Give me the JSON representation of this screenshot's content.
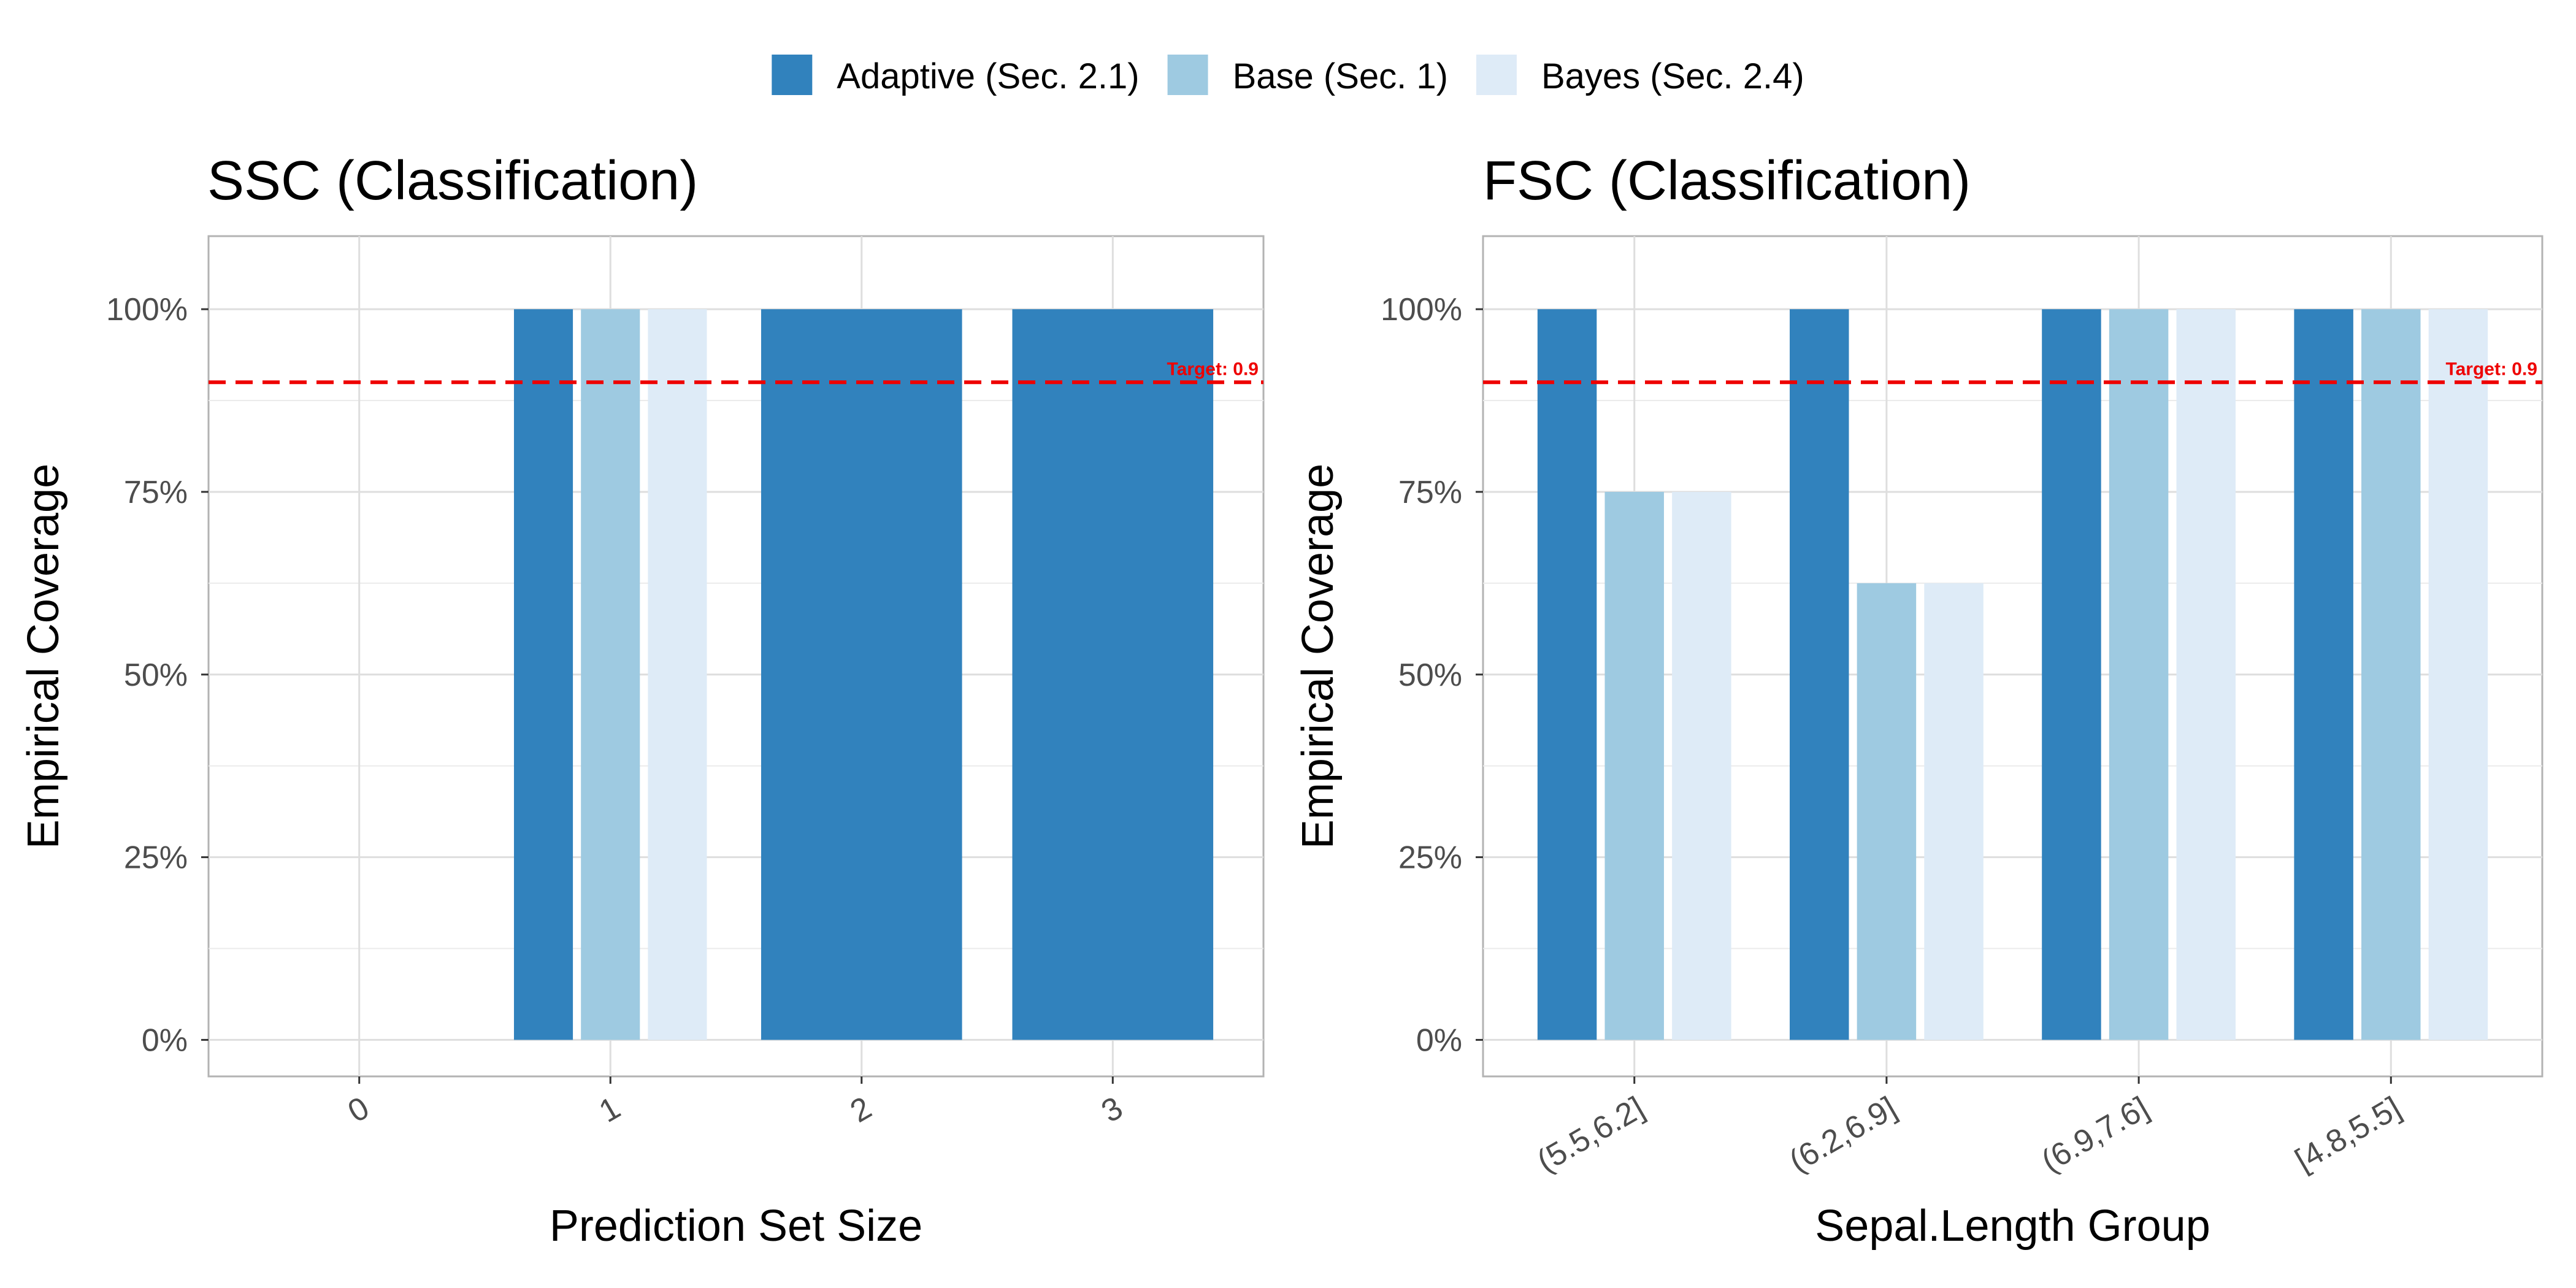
{
  "legend": [
    {
      "label": "Adaptive (Sec. 2.1)",
      "color": "#3182bd"
    },
    {
      "label": "Base (Sec. 1)",
      "color": "#9ecae1"
    },
    {
      "label": "Bayes (Sec. 2.4)",
      "color": "#deebf7"
    }
  ],
  "chart_data": [
    {
      "type": "bar",
      "title": "SSC (Classification)",
      "xlabel": "Prediction Set Size",
      "ylabel": "Empirical Coverage",
      "categories": [
        "0",
        "1",
        "2",
        "3"
      ],
      "ylim": [
        0,
        1.1
      ],
      "yticks": [
        "0%",
        "25%",
        "50%",
        "75%",
        "100%"
      ],
      "target": {
        "value": 0.9,
        "label": "Target: 0.9",
        "color": "#ee0000"
      },
      "series": [
        {
          "name": "Adaptive (Sec. 2.1)",
          "values": [
            null,
            1.0,
            1.0,
            1.0
          ]
        },
        {
          "name": "Base (Sec. 1)",
          "values": [
            null,
            1.0,
            null,
            null
          ]
        },
        {
          "name": "Bayes (Sec. 2.4)",
          "values": [
            null,
            1.0,
            null,
            null
          ]
        }
      ],
      "grid": true,
      "legend_position": "top"
    },
    {
      "type": "bar",
      "title": "FSC (Classification)",
      "xlabel": "Sepal.Length Group",
      "ylabel": "Empirical Coverage",
      "categories": [
        "(5.5,6.2]",
        "(6.2,6.9]",
        "(6.9,7.6]",
        "[4.8,5.5]"
      ],
      "ylim": [
        0,
        1.1
      ],
      "yticks": [
        "0%",
        "25%",
        "50%",
        "75%",
        "100%"
      ],
      "target": {
        "value": 0.9,
        "label": "Target: 0.9",
        "color": "#ee0000"
      },
      "series": [
        {
          "name": "Adaptive (Sec. 2.1)",
          "values": [
            1.0,
            1.0,
            1.0,
            1.0
          ]
        },
        {
          "name": "Base (Sec. 1)",
          "values": [
            0.75,
            0.625,
            1.0,
            1.0
          ]
        },
        {
          "name": "Bayes (Sec. 2.4)",
          "values": [
            0.75,
            0.625,
            1.0,
            1.0
          ]
        }
      ],
      "grid": true,
      "legend_position": "top"
    }
  ]
}
